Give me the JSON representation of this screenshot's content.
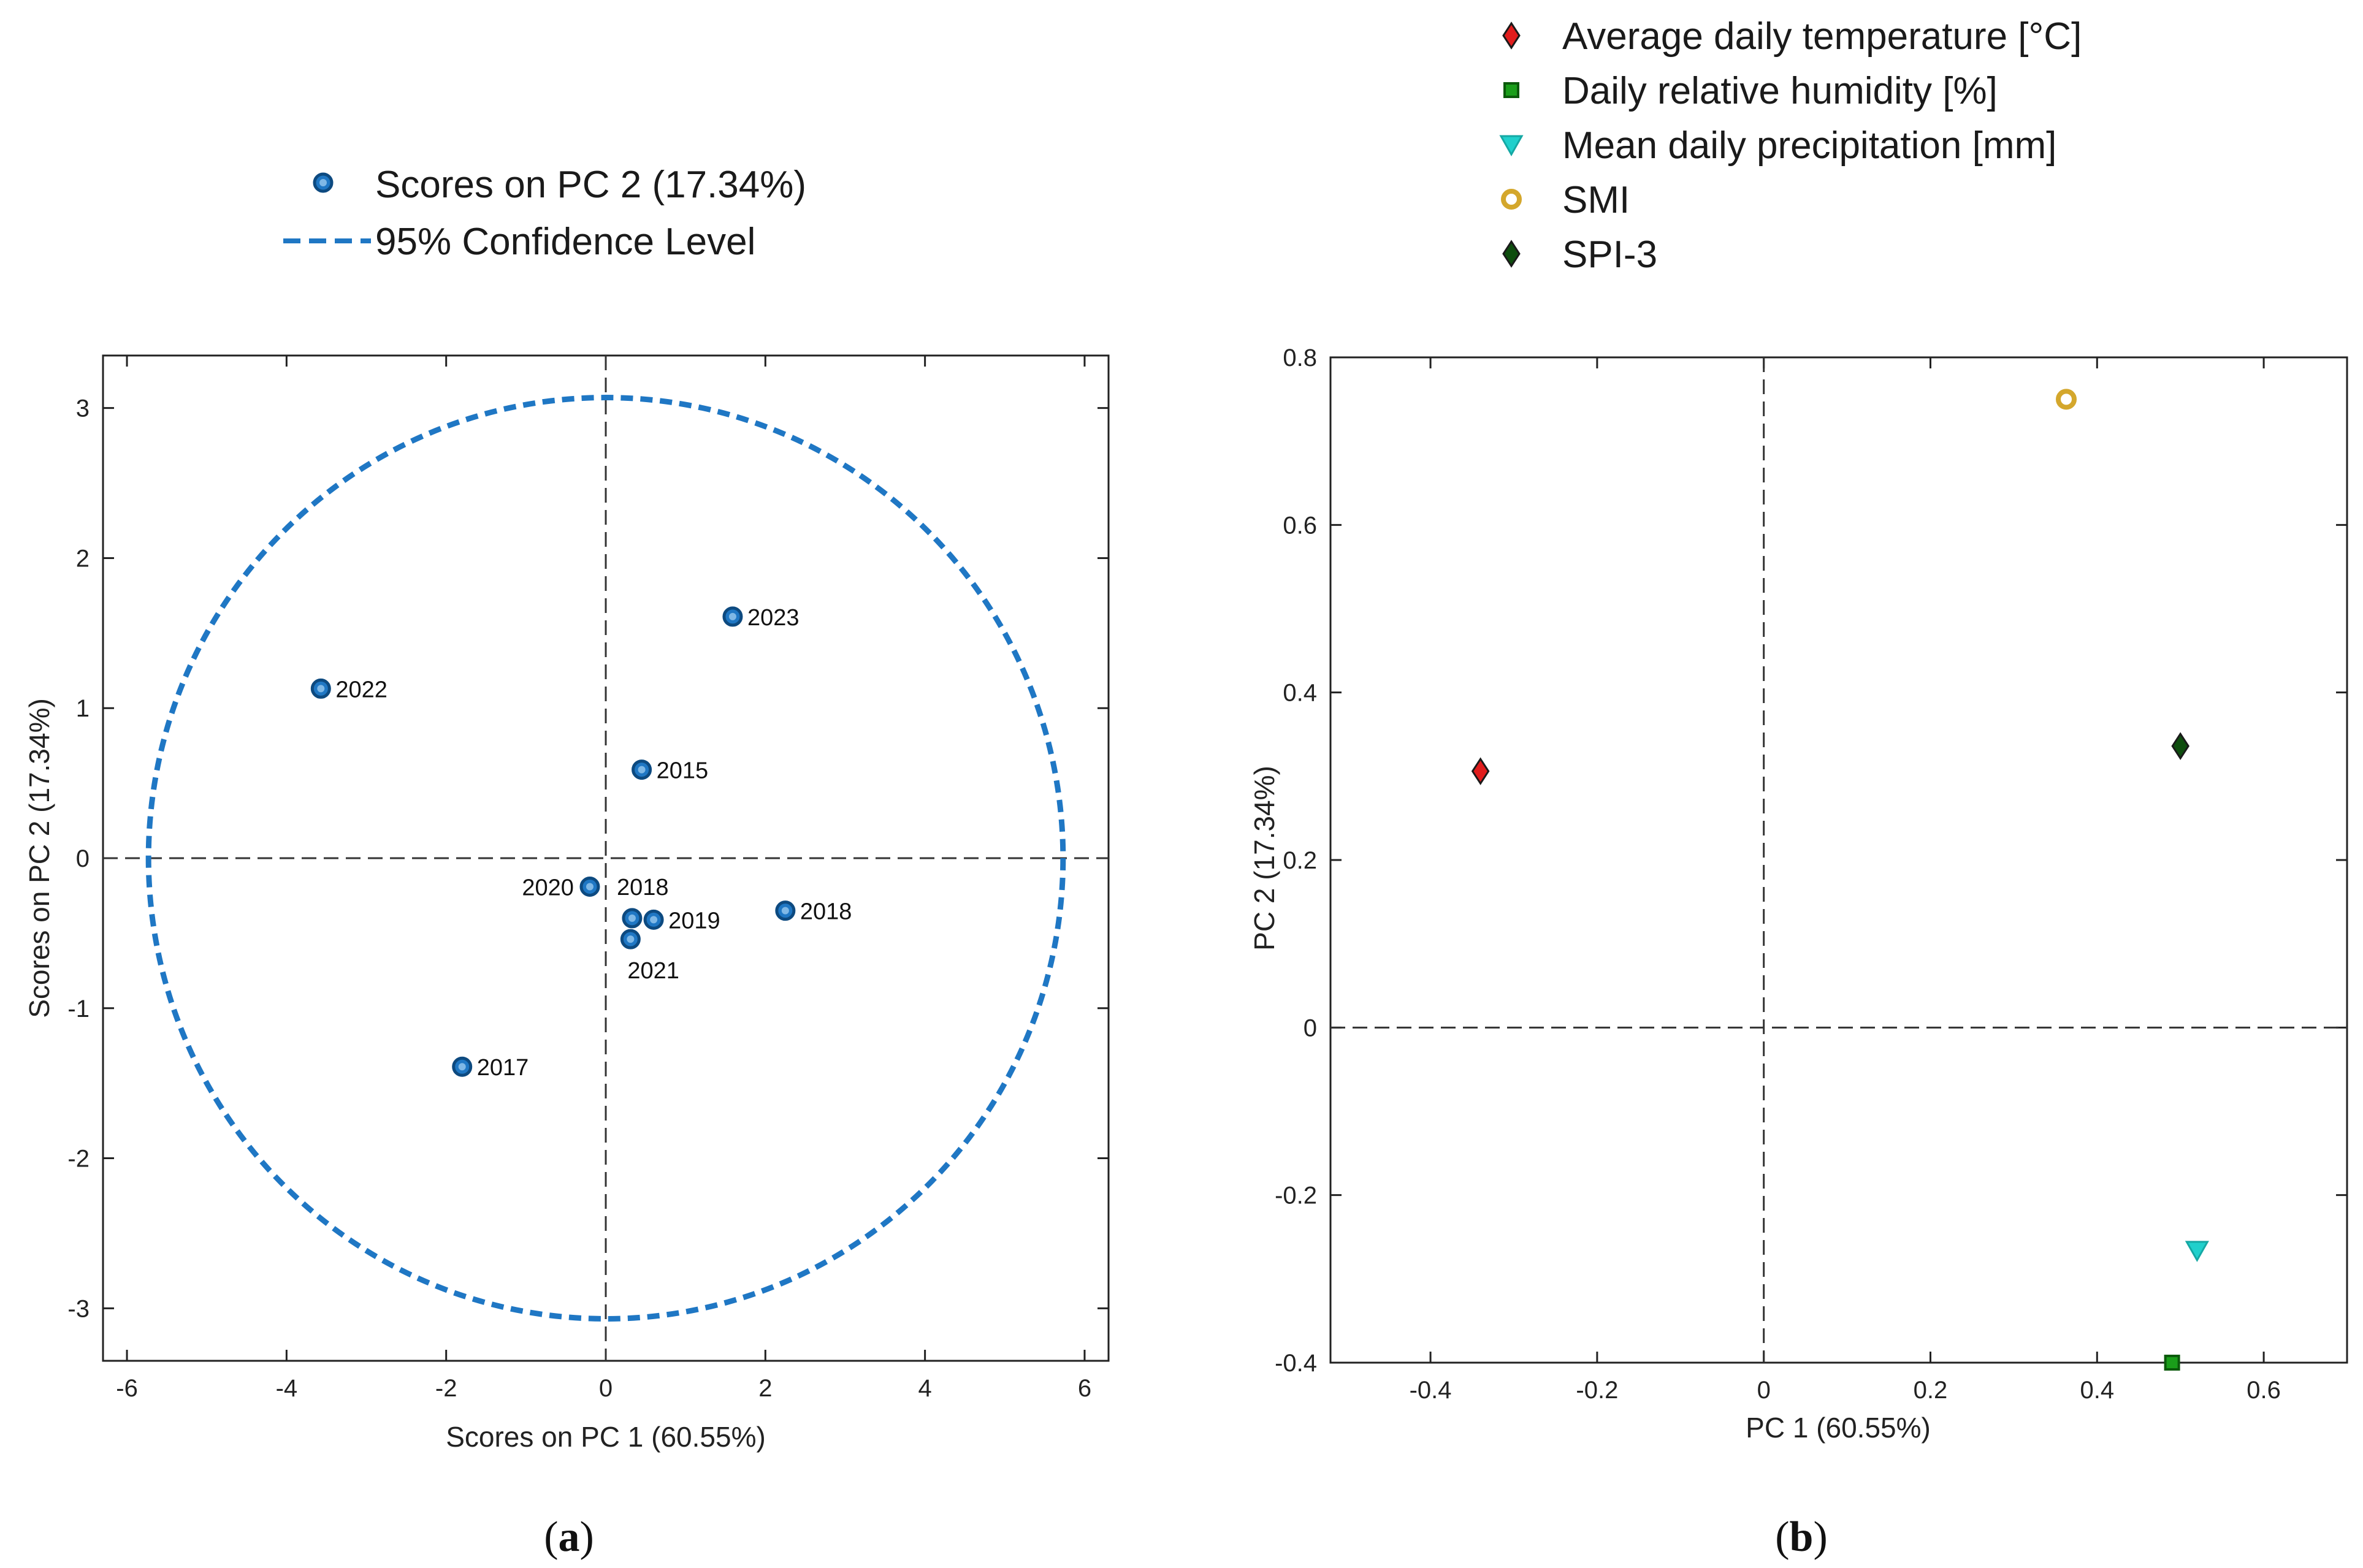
{
  "chart_data": [
    {
      "type": "scatter",
      "panel": "a",
      "caption": {
        "open": "(",
        "letter": "a",
        "close": ")"
      },
      "xlabel": "Scores on PC 1 (60.55%)",
      "ylabel": "Scores on PC 2 (17.34%)",
      "xlim": [
        -6.3,
        6.3
      ],
      "ylim": [
        -3.35,
        3.35
      ],
      "xticks": [
        -6,
        -4,
        -2,
        0,
        2,
        4,
        6
      ],
      "yticks": [
        -3,
        -2,
        -1,
        0,
        1,
        2,
        3
      ],
      "grid": false,
      "legend_position": "top-center",
      "legend": [
        {
          "label": "Scores on PC 2 (17.34%)",
          "marker": "circle",
          "color": "#1f77c4"
        },
        {
          "label": "95% Confidence Level",
          "marker": "dashed-line",
          "color": "#1f77c4"
        }
      ],
      "series": [
        {
          "name": "Scores on PC 2 (17.34%)",
          "color": "#1f77c4",
          "points": [
            {
              "label": "2015",
              "x": 0.45,
              "y": 0.59,
              "label_side": "right"
            },
            {
              "label": "2017",
              "x": -1.8,
              "y": -1.39,
              "label_side": "right"
            },
            {
              "label": "2018",
              "x": 0.33,
              "y": -0.4,
              "label_side": "above"
            },
            {
              "label": "2019",
              "x": 0.6,
              "y": -0.41,
              "label_side": "right"
            },
            {
              "label": "2020",
              "x": -0.2,
              "y": -0.19,
              "label_side": "left"
            },
            {
              "label": "2021",
              "x": 0.31,
              "y": -0.54,
              "label_side": "below"
            },
            {
              "label": "2022",
              "x": -3.57,
              "y": 1.13,
              "label_side": "right"
            },
            {
              "label": "2023",
              "x": 1.59,
              "y": 1.61,
              "label_side": "right"
            },
            {
              "label": "2018",
              "x": 2.25,
              "y": -0.35,
              "label_side": "right"
            }
          ]
        }
      ],
      "confidence_ellipse": {
        "name": "95% Confidence Level",
        "rx": 5.73,
        "ry": 3.07,
        "color": "#1f77c4"
      },
      "reference_lines": {
        "x": 0,
        "y": 0
      }
    },
    {
      "type": "scatter",
      "panel": "b",
      "caption": {
        "open": "(",
        "letter": "b",
        "close": ")"
      },
      "xlabel": "PC 1 (60.55%)",
      "ylabel": "PC 2 (17.34%)",
      "xlim": [
        -0.52,
        0.7
      ],
      "ylim": [
        -0.4,
        0.8
      ],
      "xticks": [
        -0.4,
        -0.2,
        0,
        0.2,
        0.4,
        0.6
      ],
      "yticks": [
        -0.4,
        -0.2,
        0,
        0.2,
        0.4,
        0.6,
        0.8
      ],
      "grid": false,
      "legend_position": "top-right",
      "series": [
        {
          "name": "Average daily temperature [°C]",
          "marker": "diamond",
          "color": "#e11d1d",
          "points": [
            {
              "x": -0.34,
              "y": 0.306
            }
          ]
        },
        {
          "name": "Daily relative humidity [%]",
          "marker": "square",
          "color": "#1a9e1a",
          "points": [
            {
              "x": 0.49,
              "y": -0.4
            }
          ]
        },
        {
          "name": "Mean daily precipitation [mm]",
          "marker": "triangle-down",
          "color": "#20d0cc",
          "points": [
            {
              "x": 0.52,
              "y": -0.266
            }
          ]
        },
        {
          "name": "SMI",
          "marker": "circle",
          "color": "#d4a72c",
          "points": [
            {
              "x": 0.363,
              "y": 0.75
            }
          ]
        },
        {
          "name": "SPI-3",
          "marker": "diamond",
          "color": "#0e4d0e",
          "points": [
            {
              "x": 0.5,
              "y": 0.336
            }
          ]
        }
      ],
      "reference_lines": {
        "x": 0,
        "y": 0
      }
    }
  ]
}
